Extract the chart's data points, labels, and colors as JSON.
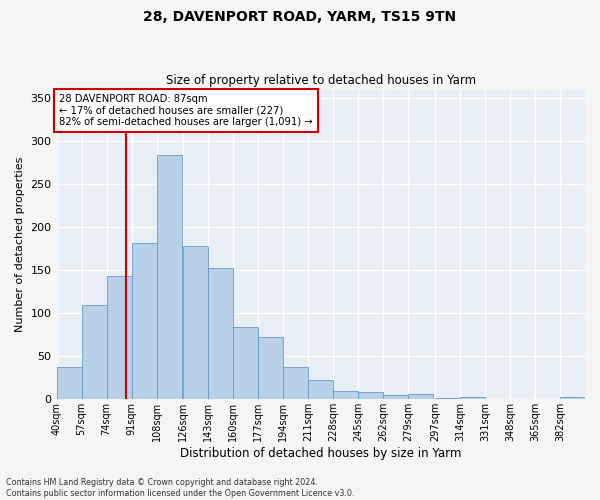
{
  "title": "28, DAVENPORT ROAD, YARM, TS15 9TN",
  "subtitle": "Size of property relative to detached houses in Yarm",
  "xlabel": "Distribution of detached houses by size in Yarm",
  "ylabel": "Number of detached properties",
  "categories": [
    "40sqm",
    "57sqm",
    "74sqm",
    "91sqm",
    "108sqm",
    "126sqm",
    "143sqm",
    "160sqm",
    "177sqm",
    "194sqm",
    "211sqm",
    "228sqm",
    "245sqm",
    "262sqm",
    "279sqm",
    "297sqm",
    "314sqm",
    "331sqm",
    "348sqm",
    "365sqm",
    "382sqm"
  ],
  "bar_heights": [
    38,
    110,
    143,
    182,
    284,
    178,
    153,
    84,
    72,
    37,
    22,
    10,
    9,
    5,
    6,
    2,
    3,
    0,
    0,
    0,
    3
  ],
  "bar_color": "#b8d0e8",
  "bar_edge_color": "#6699cc",
  "background_color": "#e8eef5",
  "grid_color": "#ffffff",
  "vline_color": "#cc0000",
  "vline_x": 87,
  "annotation_text": "28 DAVENPORT ROAD: 87sqm\n← 17% of detached houses are smaller (227)\n82% of semi-detached houses are larger (1,091) →",
  "annotation_box_color": "#ffffff",
  "annotation_box_edge": "#cc0000",
  "footer": "Contains HM Land Registry data © Crown copyright and database right 2024.\nContains public sector information licensed under the Open Government Licence v3.0.",
  "ylim": [
    0,
    360
  ],
  "yticks": [
    0,
    50,
    100,
    150,
    200,
    250,
    300,
    350
  ],
  "fig_width": 6.0,
  "fig_height": 5.0,
  "fig_dpi": 100
}
